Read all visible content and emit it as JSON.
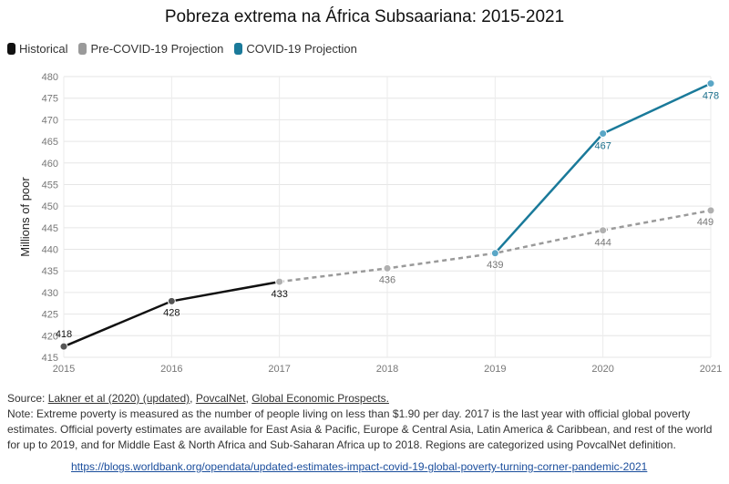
{
  "chart_data": {
    "type": "line",
    "title": "Pobreza extrema na África Subsaariana: 2015-2021",
    "ylabel": "Millions of poor",
    "xlabel": "",
    "ylim": [
      415,
      480
    ],
    "yticks": [
      415,
      420,
      425,
      430,
      435,
      440,
      445,
      450,
      455,
      460,
      465,
      470,
      475,
      480
    ],
    "categories": [
      "2015",
      "2016",
      "2017",
      "2018",
      "2019",
      "2020",
      "2021"
    ],
    "grid": true,
    "legend_position": "top-left",
    "series": [
      {
        "name": "Historical",
        "color": "#111111",
        "style": "solid",
        "points": [
          [
            "2015",
            417.5
          ],
          [
            "2016",
            428
          ],
          [
            "2017",
            432.5
          ]
        ],
        "labels": [
          "418",
          "428",
          "433"
        ]
      },
      {
        "name": "Pre-COVID-19 Projection",
        "color": "#9a9a9a",
        "style": "dashed",
        "points": [
          [
            "2017",
            432.5
          ],
          [
            "2018",
            435.6
          ],
          [
            "2019",
            439.1
          ],
          [
            "2020",
            444.4
          ],
          [
            "2021",
            449
          ]
        ],
        "labels": [
          null,
          "436",
          "439",
          "444",
          "449"
        ]
      },
      {
        "name": "COVID-19 Projection",
        "color": "#1a7a9a",
        "style": "solid",
        "points": [
          [
            "2019",
            439.1
          ],
          [
            "2020",
            466.8
          ],
          [
            "2021",
            478.4
          ]
        ],
        "labels": [
          null,
          "467",
          "478"
        ]
      }
    ]
  },
  "source": {
    "prefix": "Source: ",
    "links": [
      "Lakner et al (2020) (updated)",
      "PovcalNet",
      "Global Economic Prospects."
    ],
    "note": "Note: Extreme poverty is measured as the number of people living on less than $1.90 per day. 2017 is the last year with official global poverty estimates. Official poverty estimates are available for East Asia & Pacific, Europe & Central Asia, Latin America & Caribbean, and rest of the world for up to 2019, and for Middle East & North Africa and Sub-Saharan Africa up to 2018. Regions are categorized using PovcalNet definition.",
    "url": "https://blogs.worldbank.org/opendata/updated-estimates-impact-covid-19-global-poverty-turning-corner-pandemic-2021"
  }
}
